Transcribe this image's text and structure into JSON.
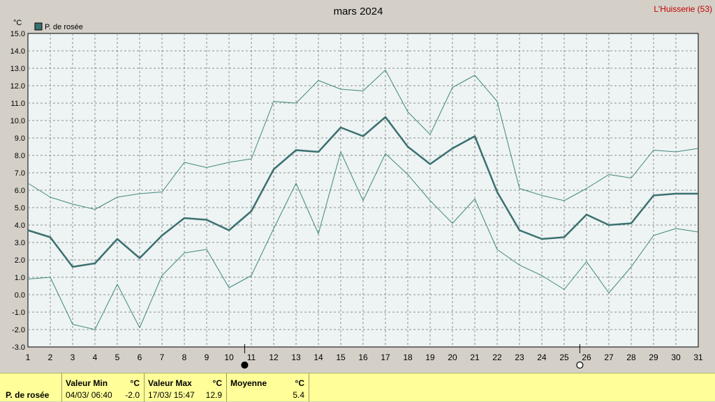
{
  "title": "mars 2024",
  "station": "L'Huisserie (53)",
  "unit_label": "°C",
  "colors": {
    "background": "#d4d0c8",
    "plot_bg": "#eef3f3",
    "grid": "#8a8f8f",
    "series_main": "#3a7070",
    "series_band": "#3f8a7e",
    "stats_bg": "#fffe99"
  },
  "moon_icons": [
    {
      "name": "new-moon-icon",
      "after_day": 10,
      "fill": "#000000"
    },
    {
      "name": "full-moon-icon",
      "after_day": 25,
      "fill": "#ffffff"
    }
  ],
  "chart_data": {
    "type": "line",
    "title": "mars 2024",
    "ylabel": "°C",
    "ylim": [
      -3.0,
      15.0
    ],
    "yticks": [
      "-3.0",
      "-2.0",
      "-1.0",
      "0.0",
      "1.0",
      "2.0",
      "3.0",
      "4.0",
      "5.0",
      "6.0",
      "7.0",
      "8.0",
      "9.0",
      "10.0",
      "11.0",
      "12.0",
      "13.0",
      "14.0",
      "15.0"
    ],
    "x": [
      1,
      2,
      3,
      4,
      5,
      6,
      7,
      8,
      9,
      10,
      11,
      12,
      13,
      14,
      15,
      16,
      17,
      18,
      19,
      20,
      21,
      22,
      23,
      24,
      25,
      26,
      27,
      28,
      29,
      30,
      31
    ],
    "grid": true,
    "legend_position": "top-left",
    "series": [
      {
        "name": "P. de rosée",
        "role": "mean",
        "values": [
          3.7,
          3.3,
          1.6,
          1.8,
          3.2,
          2.1,
          3.4,
          4.4,
          4.3,
          3.7,
          4.8,
          7.2,
          8.3,
          8.2,
          9.6,
          9.1,
          10.2,
          8.5,
          7.5,
          8.4,
          9.1,
          5.9,
          3.7,
          3.2,
          3.3,
          4.6,
          4.0,
          4.1,
          5.7,
          5.8,
          5.8
        ]
      },
      {
        "role": "max",
        "values": [
          6.4,
          5.6,
          5.2,
          4.9,
          5.6,
          5.8,
          5.9,
          7.6,
          7.3,
          7.6,
          7.8,
          11.1,
          11.0,
          12.3,
          11.8,
          11.7,
          12.9,
          10.5,
          9.2,
          11.9,
          12.6,
          11.1,
          6.1,
          5.7,
          5.4,
          6.1,
          6.9,
          6.7,
          8.3,
          8.2,
          8.4
        ]
      },
      {
        "role": "min",
        "values": [
          0.9,
          1.0,
          -1.7,
          -2.0,
          0.6,
          -1.9,
          1.1,
          2.4,
          2.6,
          0.4,
          1.1,
          3.8,
          6.4,
          3.5,
          8.2,
          5.4,
          8.1,
          6.9,
          5.4,
          4.1,
          5.5,
          2.6,
          1.7,
          1.1,
          0.3,
          1.9,
          0.1,
          1.6,
          3.4,
          3.8,
          3.6
        ]
      }
    ]
  },
  "stats": {
    "series_label": "P. de rosée",
    "min": {
      "header": "Valeur Min",
      "unit": "°C",
      "datetime": "04/03/  06:40",
      "value": "-2.0"
    },
    "max": {
      "header": "Valeur Max",
      "unit": "°C",
      "datetime": "17/03/  15:47",
      "value": "12.9"
    },
    "mean": {
      "header": "Moyenne",
      "unit": "°C",
      "value": "5.4"
    }
  }
}
